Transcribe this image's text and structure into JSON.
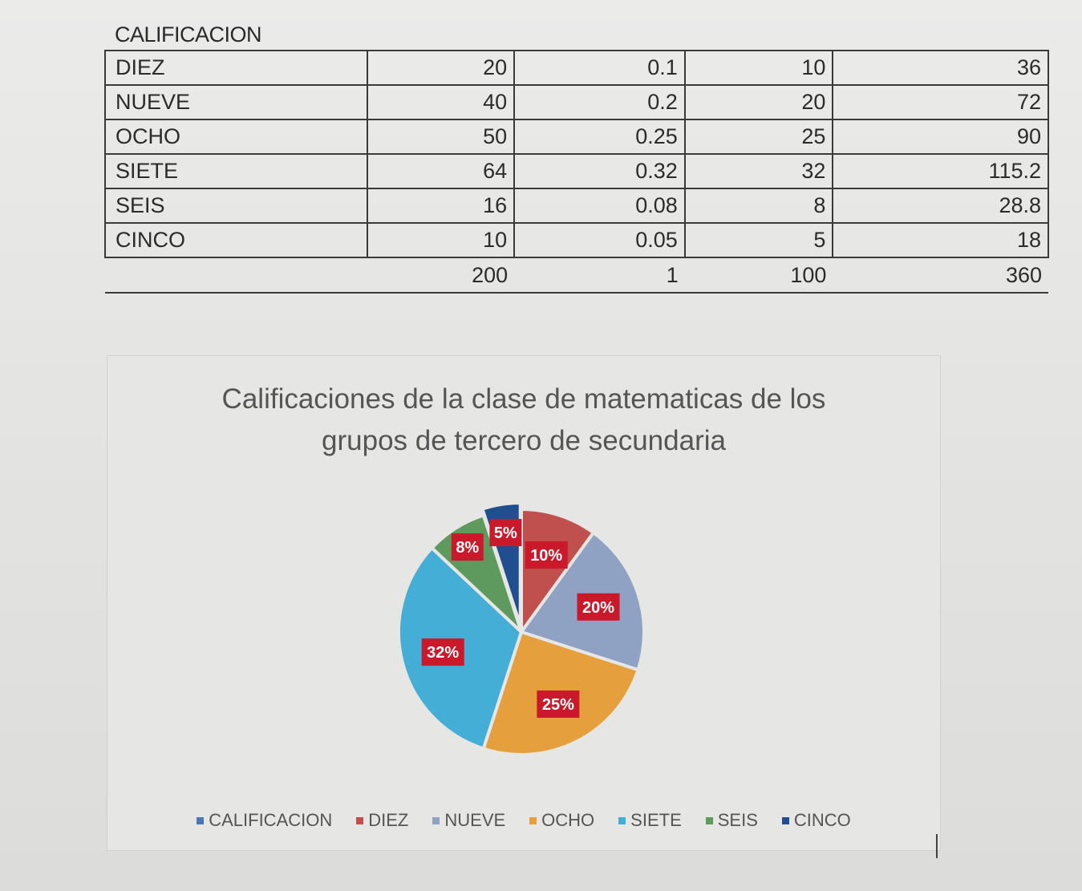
{
  "sheet": {
    "title": "CALIFICACION",
    "rows": [
      {
        "label": "DIEZ",
        "cells": [
          "20",
          "0.1",
          "10",
          "36"
        ]
      },
      {
        "label": "NUEVE",
        "cells": [
          "40",
          "0.2",
          "20",
          "72"
        ]
      },
      {
        "label": "OCHO",
        "cells": [
          "50",
          "0.25",
          "25",
          "90"
        ]
      },
      {
        "label": "SIETE",
        "cells": [
          "64",
          "0.32",
          "32",
          "115.2"
        ]
      },
      {
        "label": "SEIS",
        "cells": [
          "16",
          "0.08",
          "8",
          "28.8"
        ]
      },
      {
        "label": "CINCO",
        "cells": [
          "10",
          "0.05",
          "5",
          "18"
        ]
      }
    ],
    "totals": [
      "200",
      "1",
      "100",
      "360"
    ]
  },
  "chart_data": {
    "type": "pie",
    "title": "Calificaciones de la clase de matematicas de los\ngrupos de tercero de secundaria",
    "categories": [
      "DIEZ",
      "NUEVE",
      "OCHO",
      "SIETE",
      "SEIS",
      "CINCO"
    ],
    "values": [
      10,
      20,
      25,
      32,
      8,
      5
    ],
    "data_labels": [
      "10%",
      "20%",
      "25%",
      "32%",
      "8%",
      "5%"
    ],
    "legend": [
      "CALIFICACION",
      "DIEZ",
      "NUEVE",
      "OCHO",
      "SIETE",
      "SEIS",
      "CINCO"
    ],
    "legend_position": "bottom",
    "colors": {
      "CALIFICACION": "#4a78b4",
      "DIEZ": "#c0504d",
      "NUEVE": "#8fa2c4",
      "OCHO": "#e5a03d",
      "SIETE": "#45aed6",
      "SEIS": "#5e9a5e",
      "CINCO": "#1f4f8f",
      "label_background": "#c9192b"
    }
  }
}
